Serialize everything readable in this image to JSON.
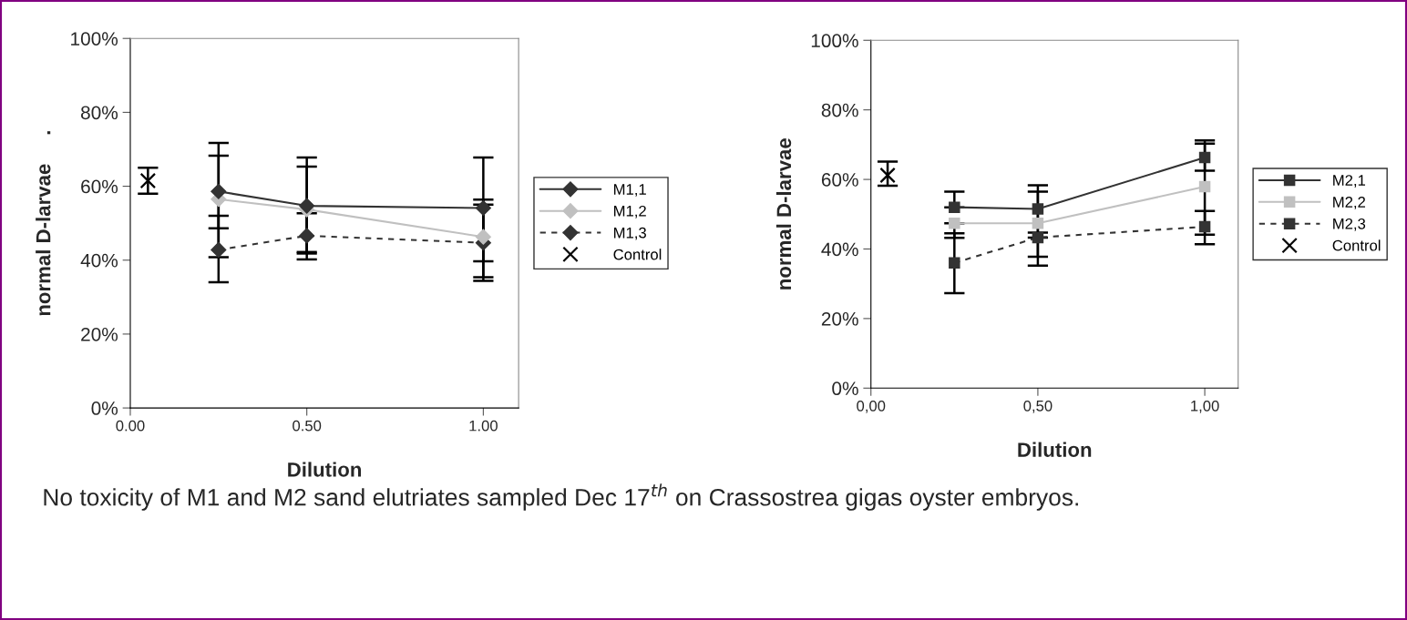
{
  "chart_data": [
    {
      "type": "line",
      "xlabel": "Dilution",
      "ylabel": "normal D-larvae     .",
      "xlim": [
        0,
        1.1
      ],
      "ylim": [
        0,
        100
      ],
      "xticks": [
        {
          "value": 0,
          "label": "0.00"
        },
        {
          "value": 0.5,
          "label": "0.50"
        },
        {
          "value": 1,
          "label": "1.00"
        }
      ],
      "yticks": [
        {
          "value": 0,
          "label": "0%"
        },
        {
          "value": 20,
          "label": "20%"
        },
        {
          "value": 40,
          "label": "40%"
        },
        {
          "value": 60,
          "label": "60%"
        },
        {
          "value": 80,
          "label": "80%"
        },
        {
          "value": 100,
          "label": "100%"
        }
      ],
      "grid": false,
      "legend": "right",
      "series": [
        {
          "name": "M1,1",
          "color": "#333333",
          "marker": "diamond",
          "line_style": "solid",
          "x": [
            0.25,
            0.5,
            1
          ],
          "values": [
            58.6,
            54.7,
            54.1
          ],
          "errors": [
            [
              48.6,
              68.3
            ],
            [
              41.8,
              67.8
            ],
            [
              39.7,
              67.8
            ]
          ]
        },
        {
          "name": "M1,2",
          "color": "#c0c0c0",
          "marker": "diamond",
          "line_style": "solid",
          "x": [
            0.25,
            0.5,
            1
          ],
          "values": [
            56.5,
            53.7,
            46.3
          ],
          "errors": [
            [
              40.8,
              71.7
            ],
            [
              42.2,
              65.3
            ],
            [
              35.4,
              56.4
            ]
          ]
        },
        {
          "name": "M1,3",
          "color": "#333333",
          "marker": "diamond",
          "line_style": "dashed",
          "x": [
            0.25,
            0.5,
            1
          ],
          "values": [
            42.8,
            46.6,
            44.7
          ],
          "errors": [
            [
              34.0,
              52.0
            ],
            [
              40.2,
              52.7
            ],
            [
              34.4,
              55.0
            ]
          ]
        },
        {
          "name": "Control",
          "type": "scatter",
          "color": "#000000",
          "marker": "cross",
          "x": [
            0.05
          ],
          "values": [
            61.5
          ],
          "errors": [
            [
              58.0,
              65.0
            ]
          ]
        }
      ]
    },
    {
      "type": "line",
      "xlabel": "Dilution",
      "ylabel": "normal D-larvae",
      "xlim": [
        0,
        1.1
      ],
      "ylim": [
        0,
        100
      ],
      "xticks": [
        {
          "value": 0,
          "label": "0,00"
        },
        {
          "value": 0.5,
          "label": "0,50"
        },
        {
          "value": 1,
          "label": "1,00"
        }
      ],
      "yticks": [
        {
          "value": 0,
          "label": "0%"
        },
        {
          "value": 20,
          "label": "20%"
        },
        {
          "value": 40,
          "label": "40%"
        },
        {
          "value": 60,
          "label": "60%"
        },
        {
          "value": 80,
          "label": "80%"
        },
        {
          "value": 100,
          "label": "100%"
        }
      ],
      "grid": false,
      "legend": "right",
      "series": [
        {
          "name": "M2,1",
          "color": "#333333",
          "marker": "square",
          "line_style": "solid",
          "x": [
            0.25,
            0.5,
            1
          ],
          "values": [
            52.0,
            51.5,
            66.3
          ],
          "errors": [
            [
              52.0,
              56.5
            ],
            [
              44.7,
              58.3
            ],
            [
              62.5,
              70.3
            ]
          ]
        },
        {
          "name": "M2,2",
          "color": "#c0c0c0",
          "marker": "square",
          "line_style": "solid",
          "x": [
            0.25,
            0.5,
            1
          ],
          "values": [
            47.4,
            47.4,
            57.9
          ],
          "errors": [
            [
              43.2,
              47.4
            ],
            [
              37.8,
              56.5
            ],
            [
              44.1,
              71.2
            ]
          ]
        },
        {
          "name": "M2,3",
          "color": "#333333",
          "marker": "square",
          "line_style": "dashed",
          "x": [
            0.25,
            0.5,
            1
          ],
          "values": [
            36.0,
            43.3,
            46.4
          ],
          "errors": [
            [
              27.3,
              44.5
            ],
            [
              35.2,
              43.3
            ],
            [
              41.4,
              50.9
            ]
          ]
        },
        {
          "name": "Control",
          "type": "scatter",
          "color": "#000000",
          "marker": "cross",
          "x": [
            0.05
          ],
          "values": [
            61.2
          ],
          "errors": [
            [
              58.2,
              65.1
            ]
          ]
        }
      ],
      "annotations": [
        "No toxicity of M1 and M2 sand elutriates sampled Dec 17$^{th}$ on Crassostrea gigas oyster embryos."
      ]
    }
  ]
}
